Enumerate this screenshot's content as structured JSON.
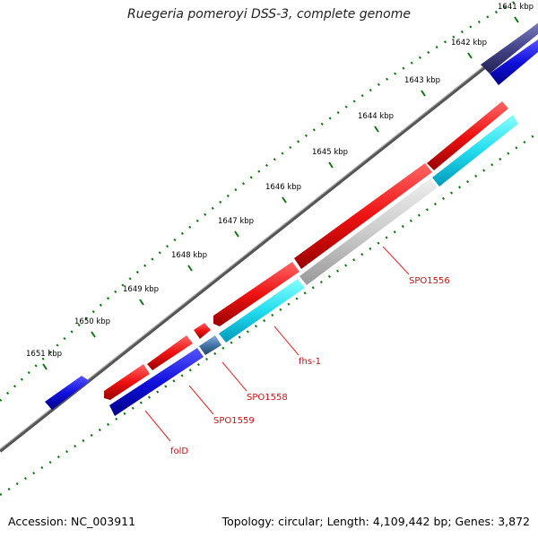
{
  "title": "Ruegeria pomeroyi DSS-3, complete genome",
  "footer": {
    "accession": "Accession: NC_003911",
    "stats": "Topology: circular; Length: 4,109,442 bp; Genes: 3,872"
  },
  "colors": {
    "backbone": "#888888",
    "forward_cds": "#ee1111",
    "reverse_cds": "#1111dd",
    "rna": "#22ddee",
    "pseudo": "#cccccc",
    "tick": "#117711",
    "label_line": "#ee2222"
  },
  "ticks": [
    {
      "label": "1641 kbp"
    },
    {
      "label": "1642 kbp"
    },
    {
      "label": "1643 kbp"
    },
    {
      "label": "1644 kbp"
    },
    {
      "label": "1645 kbp"
    },
    {
      "label": "1646 kbp"
    },
    {
      "label": "1647 kbp"
    },
    {
      "label": "1648 kbp"
    },
    {
      "label": "1649 kbp"
    },
    {
      "label": "1650 kbp"
    },
    {
      "label": "1651 kbp"
    }
  ],
  "gene_labels": [
    {
      "name": "SPO1556"
    },
    {
      "name": "fhs-1"
    },
    {
      "name": "SPO1558"
    },
    {
      "name": "SPO1559"
    },
    {
      "name": "folD"
    }
  ]
}
